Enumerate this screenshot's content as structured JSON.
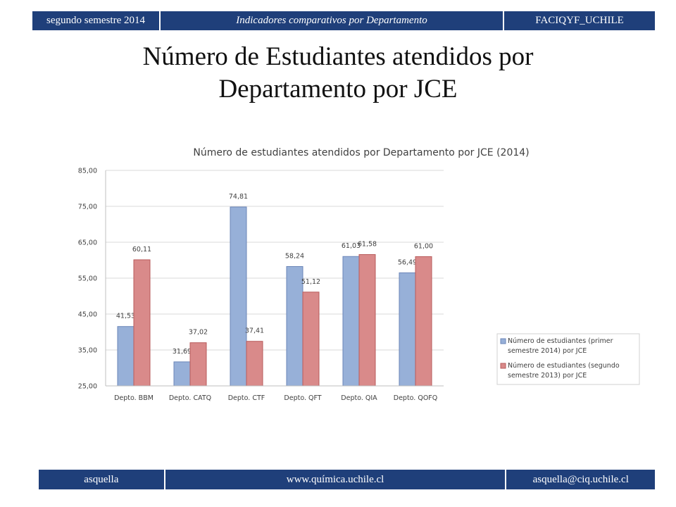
{
  "header": {
    "left": "segundo semestre 2014",
    "center": "Indicadores comparativos por Departamento",
    "right": "FACIQYF_UCHILE"
  },
  "slide": {
    "title_line1": "Número de Estudiantes atendidos por",
    "title_line2": "Departamento por JCE"
  },
  "footer": {
    "left": "asquella",
    "center": "www.química.uchile.cl",
    "right": "asquella@ciq.uchile.cl"
  },
  "colors": {
    "header_bg": "#1f3f7a",
    "series1": "#97b0d8",
    "series2": "#d98a8a"
  },
  "chart_data": {
    "type": "bar",
    "title": "Número de estudiantes atendidos por Departamento por JCE (2014)",
    "categories": [
      "Depto. BBM",
      "Depto. CATQ",
      "Depto. CTF",
      "Depto. QFT",
      "Depto. QIA",
      "Depto. QOFQ"
    ],
    "series": [
      {
        "name": "Número de estudiantes (primer semestre 2014) por JCE",
        "values": [
          41.53,
          31.69,
          74.81,
          58.24,
          61.03,
          56.49
        ],
        "labels": [
          "41,53",
          "31,69",
          "74,81",
          "58,24",
          "61,03",
          "56,49"
        ],
        "color": "#97b0d8"
      },
      {
        "name": "Número de estudiantes (segundo semestre 2013) por JCE",
        "values": [
          60.11,
          37.02,
          37.41,
          51.12,
          61.58,
          61.0
        ],
        "labels": [
          "60,11",
          "37,02",
          "37,41",
          "51,12",
          "61,58",
          "61,00"
        ],
        "color": "#d98a8a"
      }
    ],
    "yticks": [
      "25,00",
      "35,00",
      "45,00",
      "55,00",
      "65,00",
      "75,00",
      "85,00"
    ],
    "ylim": [
      25,
      85
    ],
    "grid": true,
    "legend_position": "right"
  }
}
